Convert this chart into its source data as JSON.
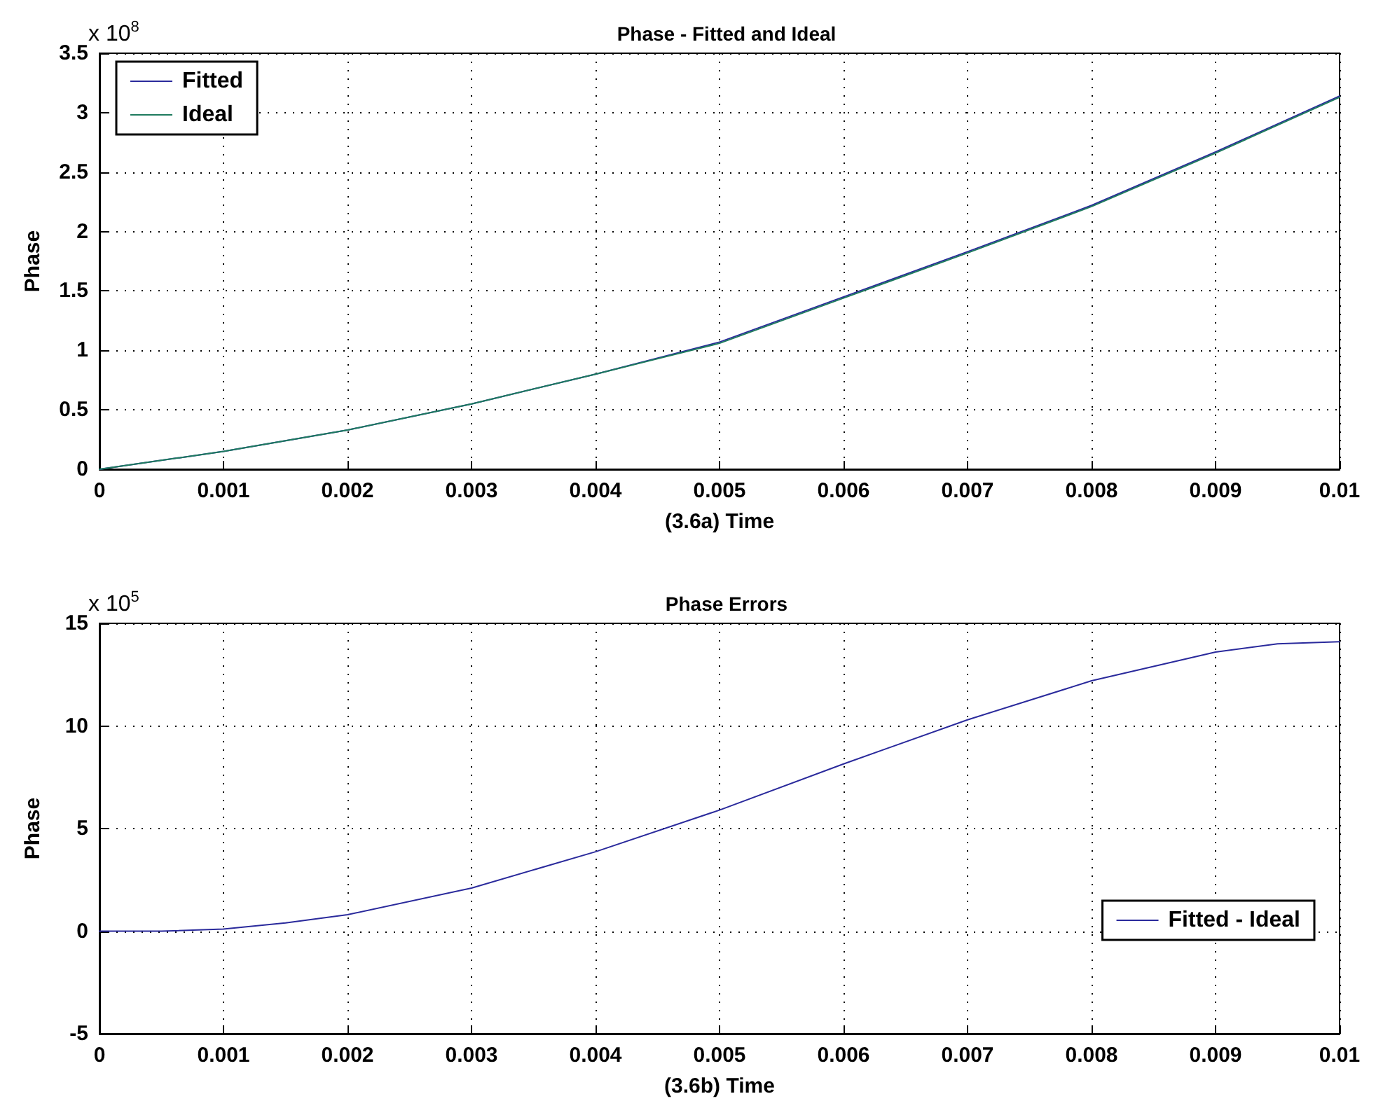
{
  "chart_data": [
    {
      "type": "line",
      "title": "Phase - Fitted and Ideal",
      "xlabel": "(3.6a) Time",
      "ylabel": "Phase",
      "annotations": [
        "x 10$^{8}$"
      ],
      "x": [
        0,
        0.001,
        0.002,
        0.003,
        0.004,
        0.005,
        0.006,
        0.007,
        0.008,
        0.009,
        0.01
      ],
      "series": [
        {
          "name": "Fitted",
          "color": "#2a2a9c",
          "values": [
            0,
            0.15,
            0.33,
            0.55,
            0.8,
            1.07,
            1.45,
            1.83,
            2.22,
            2.67,
            3.14
          ]
        },
        {
          "name": "Ideal",
          "color": "#1e7b5e",
          "values": [
            0,
            0.15,
            0.33,
            0.55,
            0.8,
            1.06,
            1.44,
            1.82,
            2.21,
            2.66,
            3.13
          ]
        }
      ],
      "xlim": [
        0,
        0.01
      ],
      "xticks": [
        0,
        0.001,
        0.002,
        0.003,
        0.004,
        0.005,
        0.006,
        0.007,
        0.008,
        0.009,
        0.01
      ],
      "ylim": [
        0,
        3.5
      ],
      "yticks": [
        0,
        0.5,
        1,
        1.5,
        2,
        2.5,
        3,
        3.5
      ],
      "grid": true,
      "legend": "top left"
    },
    {
      "type": "line",
      "title": "Phase Errors",
      "xlabel": "(3.6b) Time",
      "ylabel": "Phase",
      "annotations": [
        "x 10$^{5}$"
      ],
      "x": [
        0,
        0.0005,
        0.001,
        0.0015,
        0.002,
        0.003,
        0.004,
        0.005,
        0.006,
        0.007,
        0.008,
        0.009,
        0.0095,
        0.01
      ],
      "series": [
        {
          "name": "Fitted - Ideal",
          "color": "#2a2a9c",
          "values": [
            0,
            0,
            0.1,
            0.4,
            0.8,
            2.1,
            3.87,
            5.9,
            8.15,
            10.3,
            12.2,
            13.6,
            14.0,
            14.1
          ]
        }
      ],
      "xlim": [
        0,
        0.01
      ],
      "xticks": [
        0,
        0.001,
        0.002,
        0.003,
        0.004,
        0.005,
        0.006,
        0.007,
        0.008,
        0.009,
        0.01
      ],
      "ylim": [
        -5,
        15
      ],
      "yticks": [
        -5,
        0,
        5,
        10,
        15
      ],
      "grid": true,
      "legend": "bottom right"
    }
  ]
}
